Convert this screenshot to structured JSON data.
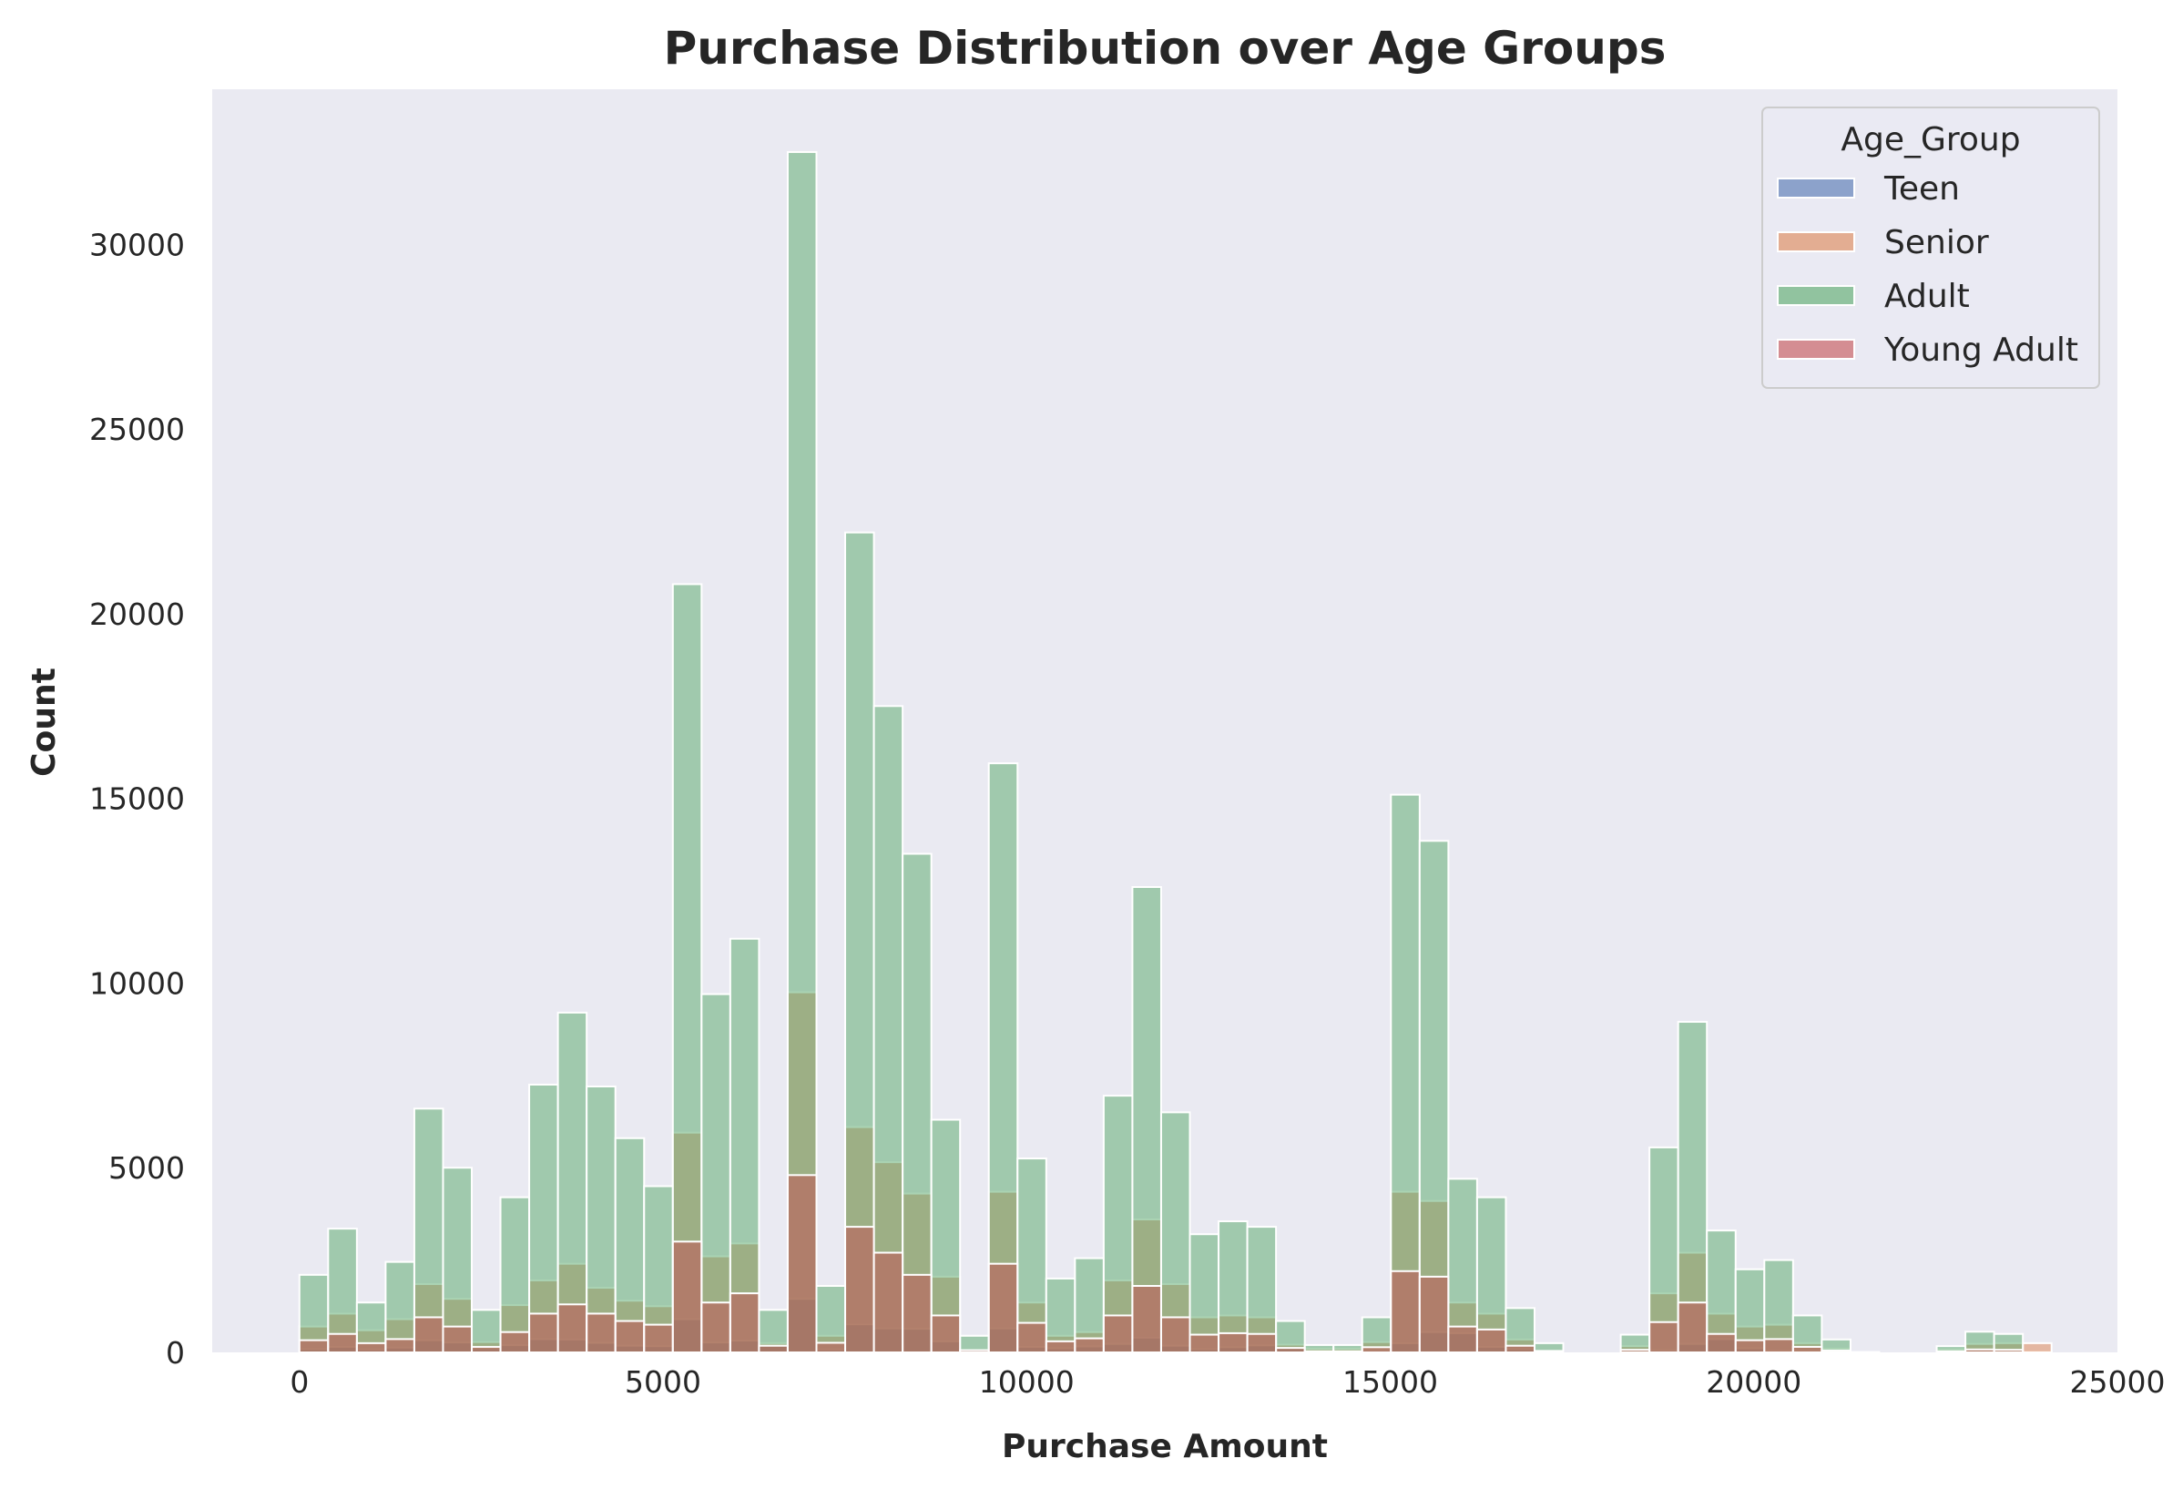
{
  "chart_data": {
    "type": "bar",
    "subtype": "overlaid-histogram",
    "title": "Purchase Distribution over Age Groups",
    "xlabel": "Purchase Amount",
    "ylabel": "Count",
    "xlim": [
      -1200,
      25000
    ],
    "ylim": [
      0,
      34200
    ],
    "xticks": [
      0,
      5000,
      10000,
      15000,
      20000,
      25000
    ],
    "yticks": [
      0,
      5000,
      10000,
      15000,
      20000,
      25000,
      30000
    ],
    "grid": false,
    "legend": {
      "title": "Age_Group",
      "position": "top-right"
    },
    "bin_width": 395,
    "x": [
      197,
      592,
      987,
      1382,
      1777,
      2172,
      2567,
      2962,
      3357,
      3752,
      4147,
      4542,
      4937,
      5332,
      5727,
      6122,
      6517,
      6912,
      7307,
      7702,
      8097,
      8492,
      8887,
      9282,
      9677,
      10072,
      10467,
      10862,
      11257,
      11652,
      12047,
      12442,
      12837,
      13232,
      13627,
      14022,
      14417,
      14812,
      15207,
      15602,
      15997,
      16392,
      16787,
      17182,
      17577,
      17972,
      18367,
      18762,
      19157,
      19552,
      19947,
      20342,
      20737,
      21132,
      21527,
      21922,
      22317,
      22712,
      23107,
      23502,
      23897
    ],
    "series": [
      {
        "name": "Teen",
        "color": "#4c72b0",
        "values": [
          90,
          150,
          80,
          130,
          330,
          270,
          110,
          200,
          360,
          350,
          260,
          180,
          170,
          900,
          270,
          320,
          220,
          1450,
          80,
          760,
          650,
          640,
          300,
          0,
          650,
          150,
          110,
          160,
          230,
          400,
          180,
          90,
          140,
          190,
          120,
          70,
          50,
          60,
          250,
          550,
          520,
          150,
          90,
          30,
          0,
          0,
          0,
          60,
          230,
          360,
          110,
          50,
          40,
          30,
          10,
          0,
          0,
          0,
          0,
          20,
          20
        ]
      },
      {
        "name": "Senior",
        "color": "#dd8452",
        "values": [
          700,
          1050,
          600,
          900,
          1850,
          1450,
          280,
          1280,
          1950,
          2400,
          1750,
          1400,
          1250,
          5950,
          2600,
          2950,
          250,
          9750,
          450,
          6100,
          5150,
          4300,
          2050,
          0,
          4350,
          1350,
          450,
          550,
          1950,
          3600,
          1850,
          950,
          1000,
          950,
          210,
          100,
          100,
          280,
          4350,
          4100,
          1350,
          1050,
          350,
          0,
          0,
          0,
          170,
          1600,
          2700,
          1050,
          700,
          750,
          250,
          100,
          0,
          0,
          0,
          80,
          230,
          250,
          250
        ]
      },
      {
        "name": "Adult",
        "color": "#55a868",
        "values": [
          2100,
          3350,
          1350,
          2450,
          6600,
          5000,
          1150,
          4200,
          7250,
          9200,
          7200,
          5800,
          4500,
          20800,
          9700,
          11200,
          1150,
          32500,
          1800,
          22200,
          17500,
          13500,
          6300,
          450,
          15950,
          5250,
          2000,
          2550,
          6950,
          12600,
          6500,
          3200,
          3550,
          3400,
          850,
          200,
          200,
          950,
          15100,
          13850,
          4700,
          4200,
          1200,
          250,
          0,
          0,
          480,
          5550,
          8950,
          3300,
          2250,
          2500,
          1000,
          350,
          0,
          0,
          0,
          170,
          560,
          500,
          0
        ]
      },
      {
        "name": "Young Adult",
        "color": "#c44e52",
        "values": [
          330,
          500,
          250,
          360,
          950,
          700,
          150,
          550,
          1050,
          1300,
          1050,
          850,
          750,
          3000,
          1350,
          1600,
          180,
          4800,
          260,
          3400,
          2700,
          2100,
          1000,
          60,
          2400,
          800,
          300,
          380,
          1000,
          1800,
          950,
          480,
          520,
          500,
          120,
          30,
          30,
          140,
          2200,
          2050,
          700,
          620,
          180,
          40,
          0,
          0,
          70,
          820,
          1350,
          500,
          330,
          360,
          150,
          50,
          0,
          0,
          0,
          30,
          80,
          70,
          0
        ]
      }
    ]
  }
}
